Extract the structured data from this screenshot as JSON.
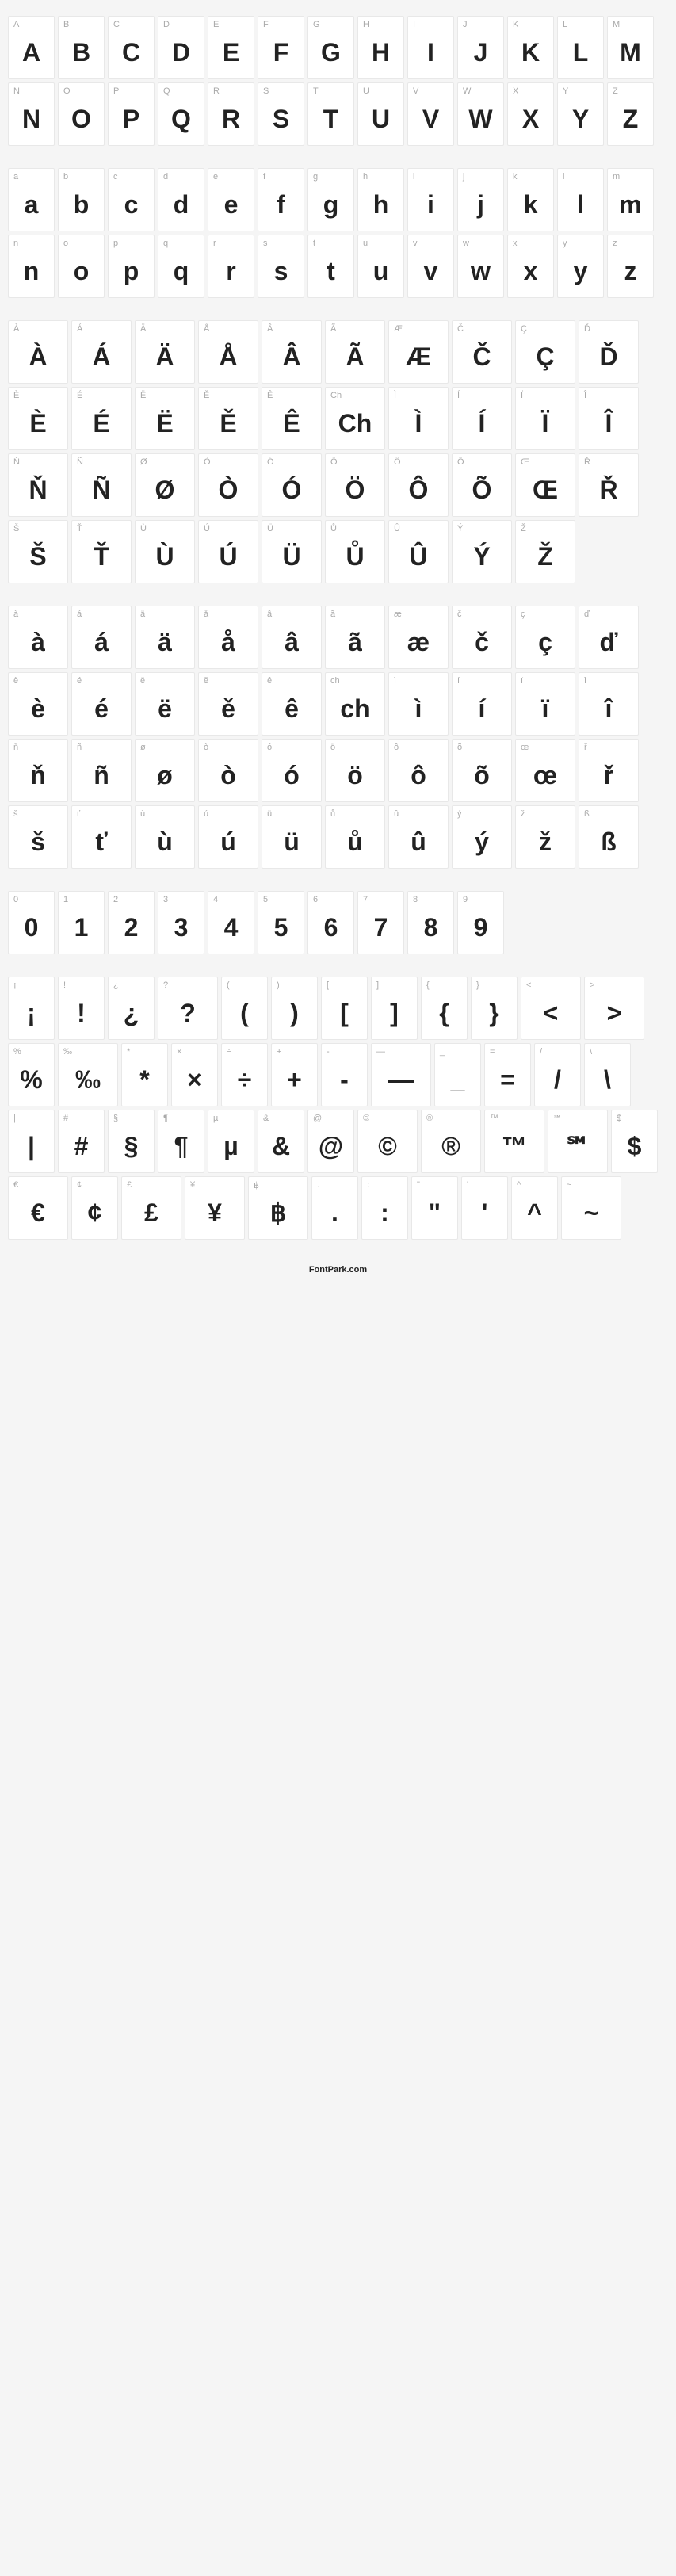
{
  "cell": {
    "width": 59,
    "height": 80,
    "background": "#ffffff",
    "border_color": "#e8e8e8",
    "label_color": "#aaaaaa",
    "label_fontsize": 11,
    "glyph_color": "#222222",
    "glyph_fontsize": 32
  },
  "wide_cell_width": 76,
  "groups": [
    {
      "name": "uppercase",
      "cells": [
        {
          "label": "A",
          "glyph": "A",
          "w": 1
        },
        {
          "label": "B",
          "glyph": "B",
          "w": 1
        },
        {
          "label": "C",
          "glyph": "C",
          "w": 1
        },
        {
          "label": "D",
          "glyph": "D",
          "w": 1
        },
        {
          "label": "E",
          "glyph": "E",
          "w": 1
        },
        {
          "label": "F",
          "glyph": "F",
          "w": 1
        },
        {
          "label": "G",
          "glyph": "G",
          "w": 1
        },
        {
          "label": "H",
          "glyph": "H",
          "w": 1
        },
        {
          "label": "I",
          "glyph": "I",
          "w": 1
        },
        {
          "label": "J",
          "glyph": "J",
          "w": 1
        },
        {
          "label": "K",
          "glyph": "K",
          "w": 1
        },
        {
          "label": "L",
          "glyph": "L",
          "w": 1
        },
        {
          "label": "M",
          "glyph": "M",
          "w": 1
        },
        {
          "label": "N",
          "glyph": "N",
          "w": 1
        },
        {
          "label": "O",
          "glyph": "O",
          "w": 1
        },
        {
          "label": "P",
          "glyph": "P",
          "w": 1
        },
        {
          "label": "Q",
          "glyph": "Q",
          "w": 1
        },
        {
          "label": "R",
          "glyph": "R",
          "w": 1
        },
        {
          "label": "S",
          "glyph": "S",
          "w": 1
        },
        {
          "label": "T",
          "glyph": "T",
          "w": 1
        },
        {
          "label": "U",
          "glyph": "U",
          "w": 1
        },
        {
          "label": "V",
          "glyph": "V",
          "w": 1
        },
        {
          "label": "W",
          "glyph": "W",
          "w": 1
        },
        {
          "label": "X",
          "glyph": "X",
          "w": 1
        },
        {
          "label": "Y",
          "glyph": "Y",
          "w": 1
        },
        {
          "label": "Z",
          "glyph": "Z",
          "w": 1
        }
      ]
    },
    {
      "name": "lowercase",
      "cells": [
        {
          "label": "a",
          "glyph": "a",
          "w": 1
        },
        {
          "label": "b",
          "glyph": "b",
          "w": 1
        },
        {
          "label": "c",
          "glyph": "c",
          "w": 1
        },
        {
          "label": "d",
          "glyph": "d",
          "w": 1
        },
        {
          "label": "e",
          "glyph": "e",
          "w": 1
        },
        {
          "label": "f",
          "glyph": "f",
          "w": 1
        },
        {
          "label": "g",
          "glyph": "g",
          "w": 1
        },
        {
          "label": "h",
          "glyph": "h",
          "w": 1
        },
        {
          "label": "i",
          "glyph": "i",
          "w": 1
        },
        {
          "label": "j",
          "glyph": "j",
          "w": 1
        },
        {
          "label": "k",
          "glyph": "k",
          "w": 1
        },
        {
          "label": "l",
          "glyph": "l",
          "w": 1
        },
        {
          "label": "m",
          "glyph": "m",
          "w": 1
        },
        {
          "label": "n",
          "glyph": "n",
          "w": 1
        },
        {
          "label": "o",
          "glyph": "o",
          "w": 1
        },
        {
          "label": "p",
          "glyph": "p",
          "w": 1
        },
        {
          "label": "q",
          "glyph": "q",
          "w": 1
        },
        {
          "label": "r",
          "glyph": "r",
          "w": 1
        },
        {
          "label": "s",
          "glyph": "s",
          "w": 1
        },
        {
          "label": "t",
          "glyph": "t",
          "w": 1
        },
        {
          "label": "u",
          "glyph": "u",
          "w": 1
        },
        {
          "label": "v",
          "glyph": "v",
          "w": 1
        },
        {
          "label": "w",
          "glyph": "w",
          "w": 1
        },
        {
          "label": "x",
          "glyph": "x",
          "w": 1
        },
        {
          "label": "y",
          "glyph": "y",
          "w": 1
        },
        {
          "label": "z",
          "glyph": "z",
          "w": 1
        }
      ]
    },
    {
      "name": "uppercase-accented",
      "cells": [
        {
          "label": "À",
          "glyph": "À",
          "w": 2
        },
        {
          "label": "Á",
          "glyph": "Á",
          "w": 2
        },
        {
          "label": "Ä",
          "glyph": "Ä",
          "w": 2
        },
        {
          "label": "Å",
          "glyph": "Å",
          "w": 2
        },
        {
          "label": "Â",
          "glyph": "Â",
          "w": 2
        },
        {
          "label": "Ã",
          "glyph": "Ã",
          "w": 2
        },
        {
          "label": "Æ",
          "glyph": "Æ",
          "w": 2
        },
        {
          "label": "Č",
          "glyph": "Č",
          "w": 2
        },
        {
          "label": "Ç",
          "glyph": "Ç",
          "w": 2
        },
        {
          "label": "Ď",
          "glyph": "Ď",
          "w": 2
        },
        {
          "label": "È",
          "glyph": "È",
          "w": 2
        },
        {
          "label": "É",
          "glyph": "É",
          "w": 2
        },
        {
          "label": "Ë",
          "glyph": "Ë",
          "w": 2
        },
        {
          "label": "Ě",
          "glyph": "Ě",
          "w": 2
        },
        {
          "label": "Ê",
          "glyph": "Ê",
          "w": 2
        },
        {
          "label": "Ch",
          "glyph": "Ch",
          "w": 2
        },
        {
          "label": "Ì",
          "glyph": "Ì",
          "w": 2
        },
        {
          "label": "Í",
          "glyph": "Í",
          "w": 2
        },
        {
          "label": "Ï",
          "glyph": "Ï",
          "w": 2
        },
        {
          "label": "Î",
          "glyph": "Î",
          "w": 2
        },
        {
          "label": "Ň",
          "glyph": "Ň",
          "w": 2
        },
        {
          "label": "Ñ",
          "glyph": "Ñ",
          "w": 2
        },
        {
          "label": "Ø",
          "glyph": "Ø",
          "w": 2
        },
        {
          "label": "Ò",
          "glyph": "Ò",
          "w": 2
        },
        {
          "label": "Ó",
          "glyph": "Ó",
          "w": 2
        },
        {
          "label": "Ö",
          "glyph": "Ö",
          "w": 2
        },
        {
          "label": "Ô",
          "glyph": "Ô",
          "w": 2
        },
        {
          "label": "Õ",
          "glyph": "Õ",
          "w": 2
        },
        {
          "label": "Œ",
          "glyph": "Œ",
          "w": 2
        },
        {
          "label": "Ř",
          "glyph": "Ř",
          "w": 2
        },
        {
          "label": "Š",
          "glyph": "Š",
          "w": 2
        },
        {
          "label": "Ť",
          "glyph": "Ť",
          "w": 2
        },
        {
          "label": "Ù",
          "glyph": "Ù",
          "w": 2
        },
        {
          "label": "Ú",
          "glyph": "Ú",
          "w": 2
        },
        {
          "label": "Ü",
          "glyph": "Ü",
          "w": 2
        },
        {
          "label": "Ů",
          "glyph": "Ů",
          "w": 2
        },
        {
          "label": "Û",
          "glyph": "Û",
          "w": 2
        },
        {
          "label": "Ý",
          "glyph": "Ý",
          "w": 2
        },
        {
          "label": "Ž",
          "glyph": "Ž",
          "w": 2
        }
      ]
    },
    {
      "name": "lowercase-accented",
      "cells": [
        {
          "label": "à",
          "glyph": "à",
          "w": 2
        },
        {
          "label": "á",
          "glyph": "á",
          "w": 2
        },
        {
          "label": "ä",
          "glyph": "ä",
          "w": 2
        },
        {
          "label": "å",
          "glyph": "å",
          "w": 2
        },
        {
          "label": "â",
          "glyph": "â",
          "w": 2
        },
        {
          "label": "ã",
          "glyph": "ã",
          "w": 2
        },
        {
          "label": "æ",
          "glyph": "æ",
          "w": 2
        },
        {
          "label": "č",
          "glyph": "č",
          "w": 2
        },
        {
          "label": "ç",
          "glyph": "ç",
          "w": 2
        },
        {
          "label": "ď",
          "glyph": "ď",
          "w": 2
        },
        {
          "label": "è",
          "glyph": "è",
          "w": 2
        },
        {
          "label": "é",
          "glyph": "é",
          "w": 2
        },
        {
          "label": "ë",
          "glyph": "ë",
          "w": 2
        },
        {
          "label": "ě",
          "glyph": "ě",
          "w": 2
        },
        {
          "label": "ê",
          "glyph": "ê",
          "w": 2
        },
        {
          "label": "ch",
          "glyph": "ch",
          "w": 2
        },
        {
          "label": "ì",
          "glyph": "ì",
          "w": 2
        },
        {
          "label": "í",
          "glyph": "í",
          "w": 2
        },
        {
          "label": "ï",
          "glyph": "ï",
          "w": 2
        },
        {
          "label": "î",
          "glyph": "î",
          "w": 2
        },
        {
          "label": "ň",
          "glyph": "ň",
          "w": 2
        },
        {
          "label": "ñ",
          "glyph": "ñ",
          "w": 2
        },
        {
          "label": "ø",
          "glyph": "ø",
          "w": 2
        },
        {
          "label": "ò",
          "glyph": "ò",
          "w": 2
        },
        {
          "label": "ó",
          "glyph": "ó",
          "w": 2
        },
        {
          "label": "ö",
          "glyph": "ö",
          "w": 2
        },
        {
          "label": "ô",
          "glyph": "ô",
          "w": 2
        },
        {
          "label": "õ",
          "glyph": "õ",
          "w": 2
        },
        {
          "label": "œ",
          "glyph": "œ",
          "w": 2
        },
        {
          "label": "ř",
          "glyph": "ř",
          "w": 2
        },
        {
          "label": "š",
          "glyph": "š",
          "w": 2
        },
        {
          "label": "ť",
          "glyph": "ť",
          "w": 2
        },
        {
          "label": "ù",
          "glyph": "ù",
          "w": 2
        },
        {
          "label": "ú",
          "glyph": "ú",
          "w": 2
        },
        {
          "label": "ü",
          "glyph": "ü",
          "w": 2
        },
        {
          "label": "ů",
          "glyph": "ů",
          "w": 2
        },
        {
          "label": "û",
          "glyph": "û",
          "w": 2
        },
        {
          "label": "ý",
          "glyph": "ý",
          "w": 2
        },
        {
          "label": "ž",
          "glyph": "ž",
          "w": 2
        },
        {
          "label": "ß",
          "glyph": "ß",
          "w": 2
        }
      ]
    },
    {
      "name": "digits",
      "cells": [
        {
          "label": "0",
          "glyph": "0",
          "w": 1
        },
        {
          "label": "1",
          "glyph": "1",
          "w": 1
        },
        {
          "label": "2",
          "glyph": "2",
          "w": 1
        },
        {
          "label": "3",
          "glyph": "3",
          "w": 1
        },
        {
          "label": "4",
          "glyph": "4",
          "w": 1
        },
        {
          "label": "5",
          "glyph": "5",
          "w": 1
        },
        {
          "label": "6",
          "glyph": "6",
          "w": 1
        },
        {
          "label": "7",
          "glyph": "7",
          "w": 1
        },
        {
          "label": "8",
          "glyph": "8",
          "w": 1
        },
        {
          "label": "9",
          "glyph": "9",
          "w": 1
        }
      ]
    },
    {
      "name": "symbols",
      "cells": [
        {
          "label": "¡",
          "glyph": "¡",
          "w": 1
        },
        {
          "label": "!",
          "glyph": "!",
          "w": 1
        },
        {
          "label": "¿",
          "glyph": "¿",
          "w": 1
        },
        {
          "label": "?",
          "glyph": "?",
          "w": 2
        },
        {
          "label": "(",
          "glyph": "(",
          "w": 1
        },
        {
          "label": ")",
          "glyph": ")",
          "w": 1
        },
        {
          "label": "[",
          "glyph": "[",
          "w": 1
        },
        {
          "label": "]",
          "glyph": "]",
          "w": 1
        },
        {
          "label": "{",
          "glyph": "{",
          "w": 1
        },
        {
          "label": "}",
          "glyph": "}",
          "w": 1
        },
        {
          "label": "<",
          "glyph": "<",
          "w": 2
        },
        {
          "label": ">",
          "glyph": ">",
          "w": 2
        },
        {
          "label": "%",
          "glyph": "%",
          "w": 1
        },
        {
          "label": "‰",
          "glyph": "‰",
          "w": 2
        },
        {
          "label": "*",
          "glyph": "*",
          "w": 1
        },
        {
          "label": "×",
          "glyph": "×",
          "w": 1
        },
        {
          "label": "÷",
          "glyph": "÷",
          "w": 1
        },
        {
          "label": "+",
          "glyph": "+",
          "w": 1
        },
        {
          "label": "-",
          "glyph": "-",
          "w": 1
        },
        {
          "label": "—",
          "glyph": "—",
          "w": 2
        },
        {
          "label": "_",
          "glyph": "_",
          "w": 1
        },
        {
          "label": "=",
          "glyph": "=",
          "w": 1
        },
        {
          "label": "/",
          "glyph": "/",
          "w": 1
        },
        {
          "label": "\\",
          "glyph": "\\",
          "w": 1
        },
        {
          "label": "|",
          "glyph": "|",
          "w": 1
        },
        {
          "label": "#",
          "glyph": "#",
          "w": 1
        },
        {
          "label": "§",
          "glyph": "§",
          "w": 1
        },
        {
          "label": "¶",
          "glyph": "¶",
          "w": 1
        },
        {
          "label": "µ",
          "glyph": "µ",
          "w": 1
        },
        {
          "label": "&",
          "glyph": "&",
          "w": 1
        },
        {
          "label": "@",
          "glyph": "@",
          "w": 1
        },
        {
          "label": "©",
          "glyph": "©",
          "w": 2
        },
        {
          "label": "®",
          "glyph": "®",
          "w": 2
        },
        {
          "label": "™",
          "glyph": "™",
          "w": 2
        },
        {
          "label": "℠",
          "glyph": "℠",
          "w": 2
        },
        {
          "label": "$",
          "glyph": "$",
          "w": 1
        },
        {
          "label": "€",
          "glyph": "€",
          "w": 2
        },
        {
          "label": "¢",
          "glyph": "¢",
          "w": 1
        },
        {
          "label": "£",
          "glyph": "£",
          "w": 2
        },
        {
          "label": "¥",
          "glyph": "¥",
          "w": 2
        },
        {
          "label": "฿",
          "glyph": "฿",
          "w": 2
        },
        {
          "label": ".",
          "glyph": ".",
          "w": 1
        },
        {
          "label": ":",
          "glyph": ":",
          "w": 1
        },
        {
          "label": "\"",
          "glyph": "\"",
          "w": 1
        },
        {
          "label": "'",
          "glyph": "'",
          "w": 1
        },
        {
          "label": "^",
          "glyph": "^",
          "w": 1
        },
        {
          "label": "~",
          "glyph": "~",
          "w": 2
        }
      ]
    }
  ],
  "footer": "FontPark.com"
}
